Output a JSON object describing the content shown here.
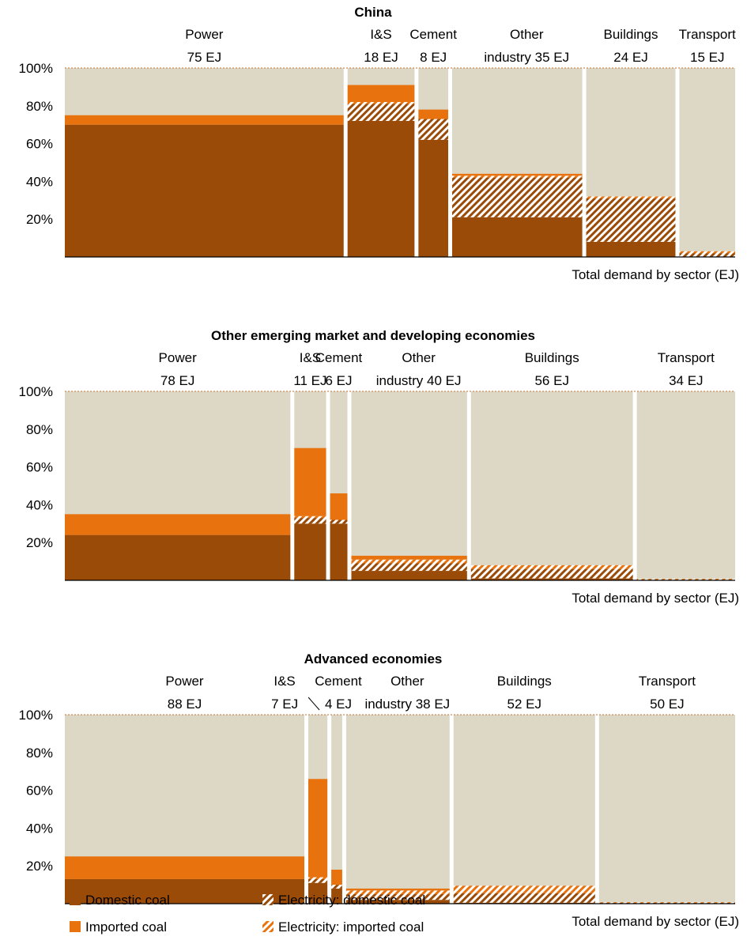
{
  "colors": {
    "domestic": "#9A4B08",
    "imported": "#E8720E",
    "other": "#DDD8C5",
    "background": "#ffffff"
  },
  "chart_data": [
    {
      "type": "bar",
      "title": "China",
      "xlabel": "Total demand by sector (EJ)",
      "ylim": [
        0,
        100
      ],
      "y_ticks": [
        "20%",
        "40%",
        "60%",
        "80%",
        "100%"
      ],
      "categories": [
        "Power",
        "I&S",
        "Cement",
        "Other industry",
        "Buildings",
        "Transport"
      ],
      "label_lines": [
        [
          "Power",
          "75 EJ"
        ],
        [
          "I&S",
          "18 EJ"
        ],
        [
          "Cement",
          "8 EJ"
        ],
        [
          "Other",
          "industry 35 EJ"
        ],
        [
          "Buildings",
          "24 EJ"
        ],
        [
          "Transport",
          "15 EJ"
        ]
      ],
      "widths_ej": [
        75,
        18,
        8,
        35,
        24,
        15
      ],
      "series": [
        {
          "name": "Domestic coal",
          "values": [
            70,
            72,
            62,
            21,
            8,
            0
          ]
        },
        {
          "name": "Electricity: domestic coal",
          "values": [
            0,
            9,
            11,
            21,
            23,
            2
          ]
        },
        {
          "name": "Electricity: imported coal",
          "values": [
            0,
            1,
            0,
            1,
            1,
            1
          ]
        },
        {
          "name": "Imported coal",
          "values": [
            5,
            9,
            5,
            1,
            0,
            0
          ]
        }
      ]
    },
    {
      "type": "bar",
      "title": "Other emerging market and developing economies",
      "xlabel": "Total demand by sector (EJ)",
      "ylim": [
        0,
        100
      ],
      "y_ticks": [
        "20%",
        "40%",
        "60%",
        "80%",
        "100%"
      ],
      "categories": [
        "Power",
        "I&S",
        "Cement",
        "Other industry",
        "Buildings",
        "Transport"
      ],
      "label_lines": [
        [
          "Power",
          "78 EJ"
        ],
        [
          "I&S",
          "11 EJ"
        ],
        [
          "Cement",
          "6 EJ"
        ],
        [
          "Other",
          "industry 40 EJ"
        ],
        [
          "Buildings",
          "56 EJ"
        ],
        [
          "Transport",
          "34 EJ"
        ]
      ],
      "widths_ej": [
        78,
        11,
        6,
        40,
        56,
        34
      ],
      "series": [
        {
          "name": "Domestic coal",
          "values": [
            24,
            30,
            30,
            5,
            1,
            0
          ]
        },
        {
          "name": "Electricity: domestic coal",
          "values": [
            0,
            3,
            2,
            4,
            5,
            0.5
          ]
        },
        {
          "name": "Electricity: imported coal",
          "values": [
            0,
            1,
            0,
            2,
            2,
            0.3
          ]
        },
        {
          "name": "Imported coal",
          "values": [
            11,
            36,
            14,
            2,
            0,
            0
          ]
        }
      ]
    },
    {
      "type": "bar",
      "title": "Advanced economies",
      "xlabel": "Total demand by sector (EJ)",
      "ylim": [
        0,
        100
      ],
      "y_ticks": [
        "20%",
        "40%",
        "60%",
        "80%",
        "100%"
      ],
      "categories": [
        "Power",
        "I&S",
        "Cement",
        "Other industry",
        "Buildings",
        "Transport"
      ],
      "label_lines": [
        [
          "Power",
          "88 EJ"
        ],
        [
          "I&S",
          "7 EJ"
        ],
        [
          "Cement",
          "4 EJ"
        ],
        [
          "Other",
          "industry 38 EJ"
        ],
        [
          "Buildings",
          "52 EJ"
        ],
        [
          "Transport",
          "50 EJ"
        ]
      ],
      "widths_ej": [
        88,
        7,
        4,
        38,
        52,
        50
      ],
      "series": [
        {
          "name": "Domestic coal",
          "values": [
            13,
            11,
            8,
            2,
            0.5,
            0
          ]
        },
        {
          "name": "Electricity: domestic coal",
          "values": [
            0,
            2,
            2,
            3,
            5,
            0.5
          ]
        },
        {
          "name": "Electricity: imported coal",
          "values": [
            0,
            1,
            0,
            2,
            4,
            0.3
          ]
        },
        {
          "name": "Imported coal",
          "values": [
            12,
            52,
            8,
            1,
            0,
            0
          ]
        }
      ]
    }
  ],
  "legend": [
    {
      "key": "domestic",
      "label": "Domestic coal"
    },
    {
      "key": "elec_dom",
      "label": "Electricity: domestic coal"
    },
    {
      "key": "imported",
      "label": "Imported coal"
    },
    {
      "key": "elec_imp",
      "label": "Electricity: imported coal"
    }
  ]
}
